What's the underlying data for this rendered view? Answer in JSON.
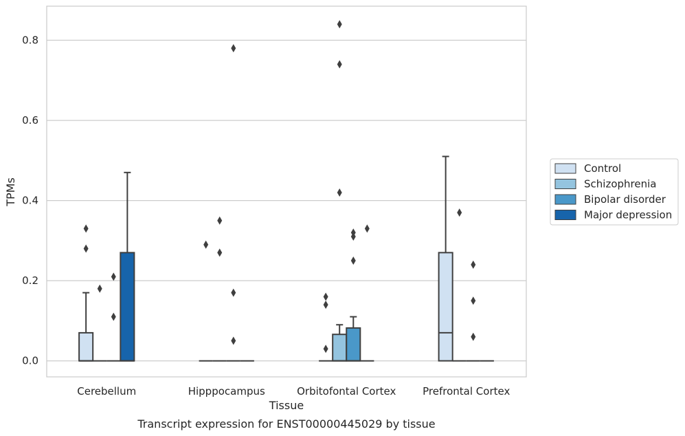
{
  "chart_data": {
    "type": "box",
    "title": "",
    "caption": "Transcript expression for ENST00000445029 by tissue",
    "xlabel": "Tissue",
    "ylabel": "TPMs",
    "ylim": [
      -0.04,
      0.885
    ],
    "yticks": [
      "0.0",
      "0.2",
      "0.4",
      "0.6",
      "0.8"
    ],
    "ytick_values": [
      0.0,
      0.2,
      0.4,
      0.6,
      0.8
    ],
    "grid": "horizontal",
    "legend_position": "right",
    "categories": [
      "Cerebellum",
      "Hipppocampus",
      "Orbitofontal Cortex",
      "Prefrontal Cortex"
    ],
    "series": [
      {
        "name": "Control",
        "color": "#d0e1f2",
        "boxes": [
          {
            "category": "Cerebellum",
            "q1": 0.0,
            "median": 0.0,
            "q3": 0.07,
            "whisker_low": 0.0,
            "whisker_high": 0.17,
            "outliers": [
              0.33,
              0.28
            ]
          },
          {
            "category": "Hipppocampus",
            "q1": 0.0,
            "median": 0.0,
            "q3": 0.0,
            "whisker_low": 0.0,
            "whisker_high": 0.0,
            "outliers": [
              0.29
            ]
          },
          {
            "category": "Orbitofontal Cortex",
            "q1": 0.0,
            "median": 0.0,
            "q3": 0.0,
            "whisker_low": 0.0,
            "whisker_high": 0.0,
            "outliers": [
              0.16,
              0.14,
              0.03
            ]
          },
          {
            "category": "Prefrontal Cortex",
            "q1": 0.0,
            "median": 0.07,
            "q3": 0.27,
            "whisker_low": 0.0,
            "whisker_high": 0.51,
            "outliers": []
          }
        ]
      },
      {
        "name": "Schizophrenia",
        "color": "#94c4df",
        "boxes": [
          {
            "category": "Cerebellum",
            "q1": 0.0,
            "median": 0.0,
            "q3": 0.0,
            "whisker_low": 0.0,
            "whisker_high": 0.0,
            "outliers": [
              0.18
            ]
          },
          {
            "category": "Hipppocampus",
            "q1": 0.0,
            "median": 0.0,
            "q3": 0.0,
            "whisker_low": 0.0,
            "whisker_high": 0.0,
            "outliers": [
              0.35,
              0.27
            ]
          },
          {
            "category": "Orbitofontal Cortex",
            "q1": 0.0,
            "median": 0.0,
            "q3": 0.066,
            "whisker_low": 0.0,
            "whisker_high": 0.09,
            "outliers": [
              0.84,
              0.74,
              0.42
            ]
          },
          {
            "category": "Prefrontal Cortex",
            "q1": 0.0,
            "median": 0.0,
            "q3": 0.0,
            "whisker_low": 0.0,
            "whisker_high": 0.0,
            "outliers": [
              0.37
            ]
          }
        ]
      },
      {
        "name": "Bipolar disorder",
        "color": "#4a98c9",
        "boxes": [
          {
            "category": "Cerebellum",
            "q1": 0.0,
            "median": 0.0,
            "q3": 0.0,
            "whisker_low": 0.0,
            "whisker_high": 0.0,
            "outliers": [
              0.21,
              0.11
            ]
          },
          {
            "category": "Hipppocampus",
            "q1": 0.0,
            "median": 0.0,
            "q3": 0.0,
            "whisker_low": 0.0,
            "whisker_high": 0.0,
            "outliers": [
              0.78,
              0.17,
              0.05
            ]
          },
          {
            "category": "Orbitofontal Cortex",
            "q1": 0.0,
            "median": 0.0,
            "q3": 0.082,
            "whisker_low": 0.0,
            "whisker_high": 0.11,
            "outliers": [
              0.32,
              0.31,
              0.25
            ]
          },
          {
            "category": "Prefrontal Cortex",
            "q1": 0.0,
            "median": 0.0,
            "q3": 0.0,
            "whisker_low": 0.0,
            "whisker_high": 0.0,
            "outliers": [
              0.24,
              0.15,
              0.06
            ]
          }
        ]
      },
      {
        "name": "Major depression",
        "color": "#1764ab",
        "boxes": [
          {
            "category": "Cerebellum",
            "q1": 0.0,
            "median": 0.0,
            "q3": 0.27,
            "whisker_low": 0.0,
            "whisker_high": 0.47,
            "outliers": []
          },
          {
            "category": "Hipppocampus",
            "q1": 0.0,
            "median": 0.0,
            "q3": 0.0,
            "whisker_low": 0.0,
            "whisker_high": 0.0,
            "outliers": []
          },
          {
            "category": "Orbitofontal Cortex",
            "q1": 0.0,
            "median": 0.0,
            "q3": 0.0,
            "whisker_low": 0.0,
            "whisker_high": 0.0,
            "outliers": [
              0.33
            ]
          },
          {
            "category": "Prefrontal Cortex",
            "q1": 0.0,
            "median": 0.0,
            "q3": 0.0,
            "whisker_low": 0.0,
            "whisker_high": 0.0,
            "outliers": []
          }
        ]
      }
    ]
  }
}
